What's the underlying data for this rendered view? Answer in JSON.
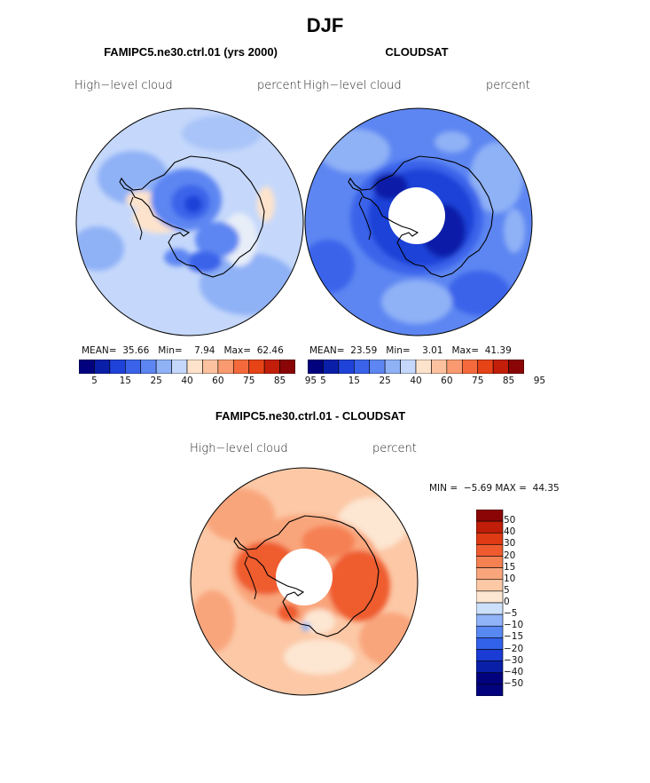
{
  "page_title": "DJF",
  "colors": {
    "main_scale": [
      "#02027e",
      "#0a1fa8",
      "#1f42d8",
      "#3a63ea",
      "#5d86f2",
      "#8fb1f6",
      "#c5d8fb",
      "#fde3cc",
      "#fcc2a0",
      "#fa9a70",
      "#f56a3c",
      "#e64317",
      "#c31e09",
      "#8a0606"
    ],
    "diff_scale": [
      "#02027e",
      "#0a1fa8",
      "#1a3cd4",
      "#3261ea",
      "#5888f2",
      "#91b3f8",
      "#cde0fb",
      "#fde6d2",
      "#fcc8a6",
      "#f9a57c",
      "#f58052",
      "#ef5b2f",
      "#de3a14",
      "#c01e08",
      "#8a0606"
    ],
    "coast": "#000000",
    "hole": "#ffffff"
  },
  "chart_data": [
    {
      "type": "heatmap",
      "projection": "polar-stereographic-south",
      "title": "FAMIPC5.ne30.ctrl.01 (yrs 2000)",
      "left_label": "High−level cloud",
      "right_label": "percent",
      "stats": {
        "mean_label": "MEAN=",
        "mean": "35.66",
        "min_label": "Min=",
        "min": "7.94",
        "max_label": "Max=",
        "max": "62.46"
      },
      "levels": [
        "5",
        "15",
        "25",
        "40",
        "60",
        "75",
        "85",
        "95"
      ],
      "field_summary": "Light blue ~25-40% over most of the domain, darker blue 10-20% over the East Antarctic plateau, pale/near-neutral 40-60% bands around West Antarctica and the peninsula."
    },
    {
      "type": "heatmap",
      "projection": "polar-stereographic-south",
      "title": "CLOUDSAT",
      "left_label": "High−level cloud",
      "right_label": "percent",
      "stats": {
        "mean_label": "MEAN=",
        "mean": "23.59",
        "min_label": "Min=",
        "min": "3.01",
        "max_label": "Max=",
        "max": "41.39"
      },
      "levels": [
        "5",
        "15",
        "25",
        "40",
        "60",
        "75",
        "85",
        "95"
      ],
      "field_summary": "Medium blue ~15-30% over ocean, dark blue 5-15% over the continent, missing data near the pole."
    },
    {
      "type": "heatmap",
      "projection": "polar-stereographic-south",
      "title": "FAMIPC5.ne30.ctrl.01 - CLOUDSAT",
      "left_label": "High−level cloud",
      "right_label": "percent",
      "stats": {
        "min_label": "MIN =",
        "min": "−5.69",
        "max_label": "MAX =",
        "max": "44.35"
      },
      "levels": [
        "50",
        "40",
        "30",
        "20",
        "15",
        "10",
        "5",
        "0",
        "−5",
        "−10",
        "−15",
        "−20",
        "−30",
        "−40",
        "−50"
      ],
      "field_summary": "Positive differences 5-30% almost everywhere, largest (20-30%) over the Antarctic coast and interior; small negative patches near the Ross Sea."
    }
  ]
}
